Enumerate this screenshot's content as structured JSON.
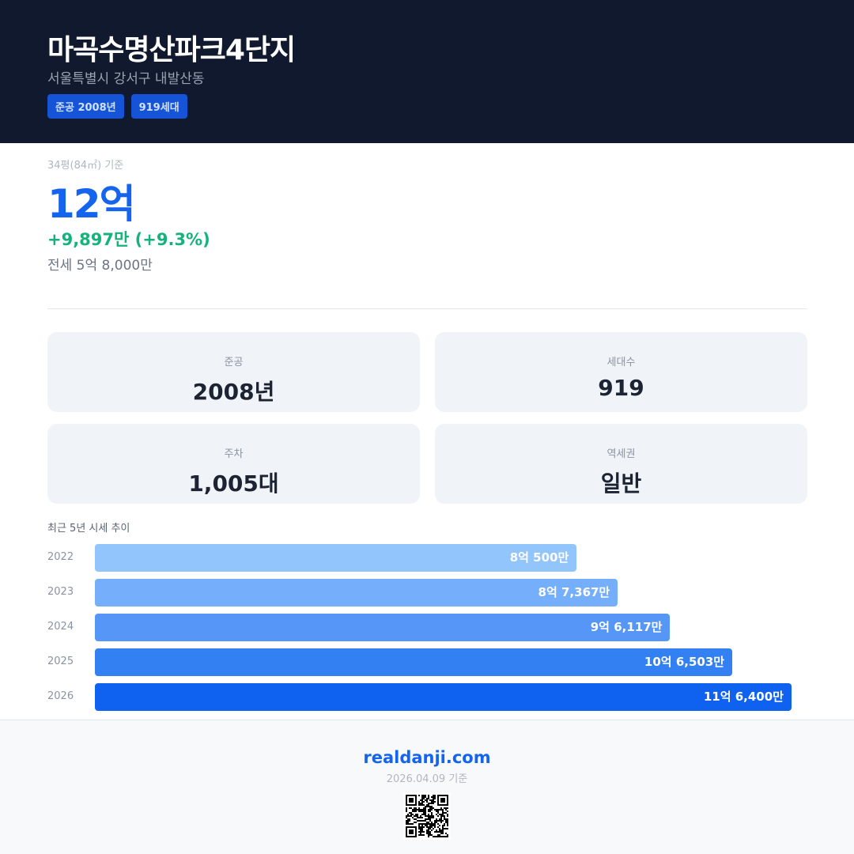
{
  "header": {
    "title": "마곡수명산파크4단지",
    "address": "서울특별시 강서구 내발산동",
    "badges": [
      "준공 2008년",
      "919세대"
    ]
  },
  "price": {
    "basis": "34평(84㎡) 기준",
    "value": "12억",
    "change": "+9,897만 (+9.3%)",
    "jeonse": "전세 5억 8,000만"
  },
  "stats": [
    {
      "label": "준공",
      "value": "2008년"
    },
    {
      "label": "세대수",
      "value": "919"
    },
    {
      "label": "주차",
      "value": "1,005대"
    },
    {
      "label": "역세권",
      "value": "일반"
    }
  ],
  "chart_data": {
    "type": "bar",
    "orientation": "horizontal",
    "title": "최근 5년 시세 추이",
    "categories": [
      "2022",
      "2023",
      "2024",
      "2025",
      "2026"
    ],
    "values": [
      80500,
      87367,
      96117,
      106503,
      116400
    ],
    "unit": "만원",
    "labels": [
      "8억 500만",
      "8억 7,367만",
      "9억 6,117만",
      "10억 6,503만",
      "11억 6,400만"
    ],
    "colors": [
      "#93c5fd",
      "#75affb",
      "#5596f7",
      "#3380f3",
      "#0f62ef"
    ]
  },
  "footer": {
    "site": "realdanji.com",
    "date": "2026.04.09 기준"
  }
}
